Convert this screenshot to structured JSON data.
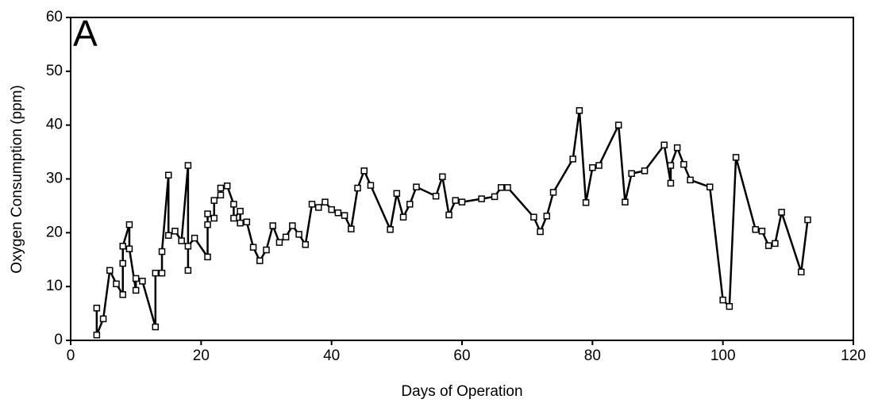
{
  "chart_data": {
    "type": "line",
    "annotation": "A",
    "x_label": "Days of Operation",
    "y_label": "Oxygen Consumption (ppm)",
    "color": "#000000",
    "x": [
      4,
      4,
      5,
      6,
      7,
      8,
      8,
      8,
      9,
      9,
      10,
      10,
      11,
      13,
      13,
      14,
      14,
      15,
      15,
      16,
      17,
      18,
      18,
      18,
      19,
      21,
      21,
      21,
      22,
      22,
      23,
      23,
      24,
      25,
      25,
      26,
      26,
      27,
      28,
      29,
      30,
      31,
      32,
      33,
      34,
      35,
      36,
      37,
      38,
      39,
      40,
      41,
      42,
      43,
      44,
      45,
      46,
      49,
      50,
      51,
      52,
      53,
      56,
      57,
      58,
      59,
      60,
      63,
      65,
      66,
      67,
      71,
      72,
      73,
      74,
      77,
      78,
      79,
      80,
      81,
      84,
      85,
      86,
      88,
      91,
      92,
      92,
      93,
      94,
      95,
      98,
      100,
      101,
      102,
      105,
      106,
      107,
      108,
      109,
      112,
      113
    ],
    "values": [
      6,
      1,
      4,
      13,
      10.5,
      8.5,
      14.3,
      17.5,
      21.5,
      17,
      9.3,
      11.5,
      11,
      2.5,
      12.5,
      12.5,
      16.5,
      30.7,
      19.5,
      20.3,
      18.5,
      32.5,
      13,
      17.5,
      19,
      15.5,
      21.5,
      23.5,
      22.7,
      26,
      27,
      28.3,
      28.7,
      25.3,
      22.7,
      24,
      21.8,
      22,
      17.3,
      14.8,
      16.8,
      21.3,
      18.2,
      19.2,
      21.3,
      19.7,
      17.8,
      25.3,
      24.7,
      25.7,
      24.3,
      23.7,
      23.2,
      20.7,
      28.3,
      31.5,
      28.8,
      20.6,
      27.3,
      22.9,
      25.3,
      28.5,
      26.8,
      30.4,
      23.3,
      26,
      25.7,
      26.3,
      26.7,
      28.4,
      28.4,
      22.9,
      20.2,
      23.1,
      27.5,
      33.7,
      42.7,
      25.6,
      32.1,
      32.5,
      40,
      25.7,
      31,
      31.5,
      36.3,
      29.2,
      32.5,
      35.8,
      32.7,
      29.8,
      28.5,
      7.5,
      6.3,
      34,
      20.6,
      20.3,
      17.6,
      18,
      23.8,
      12.7,
      22.4
    ],
    "xlim": [
      0,
      120
    ],
    "xticks": [
      0,
      20,
      40,
      60,
      80,
      100,
      120
    ],
    "ylim": [
      0,
      60
    ],
    "yticks": [
      0,
      10,
      20,
      30,
      40,
      50,
      60
    ]
  }
}
